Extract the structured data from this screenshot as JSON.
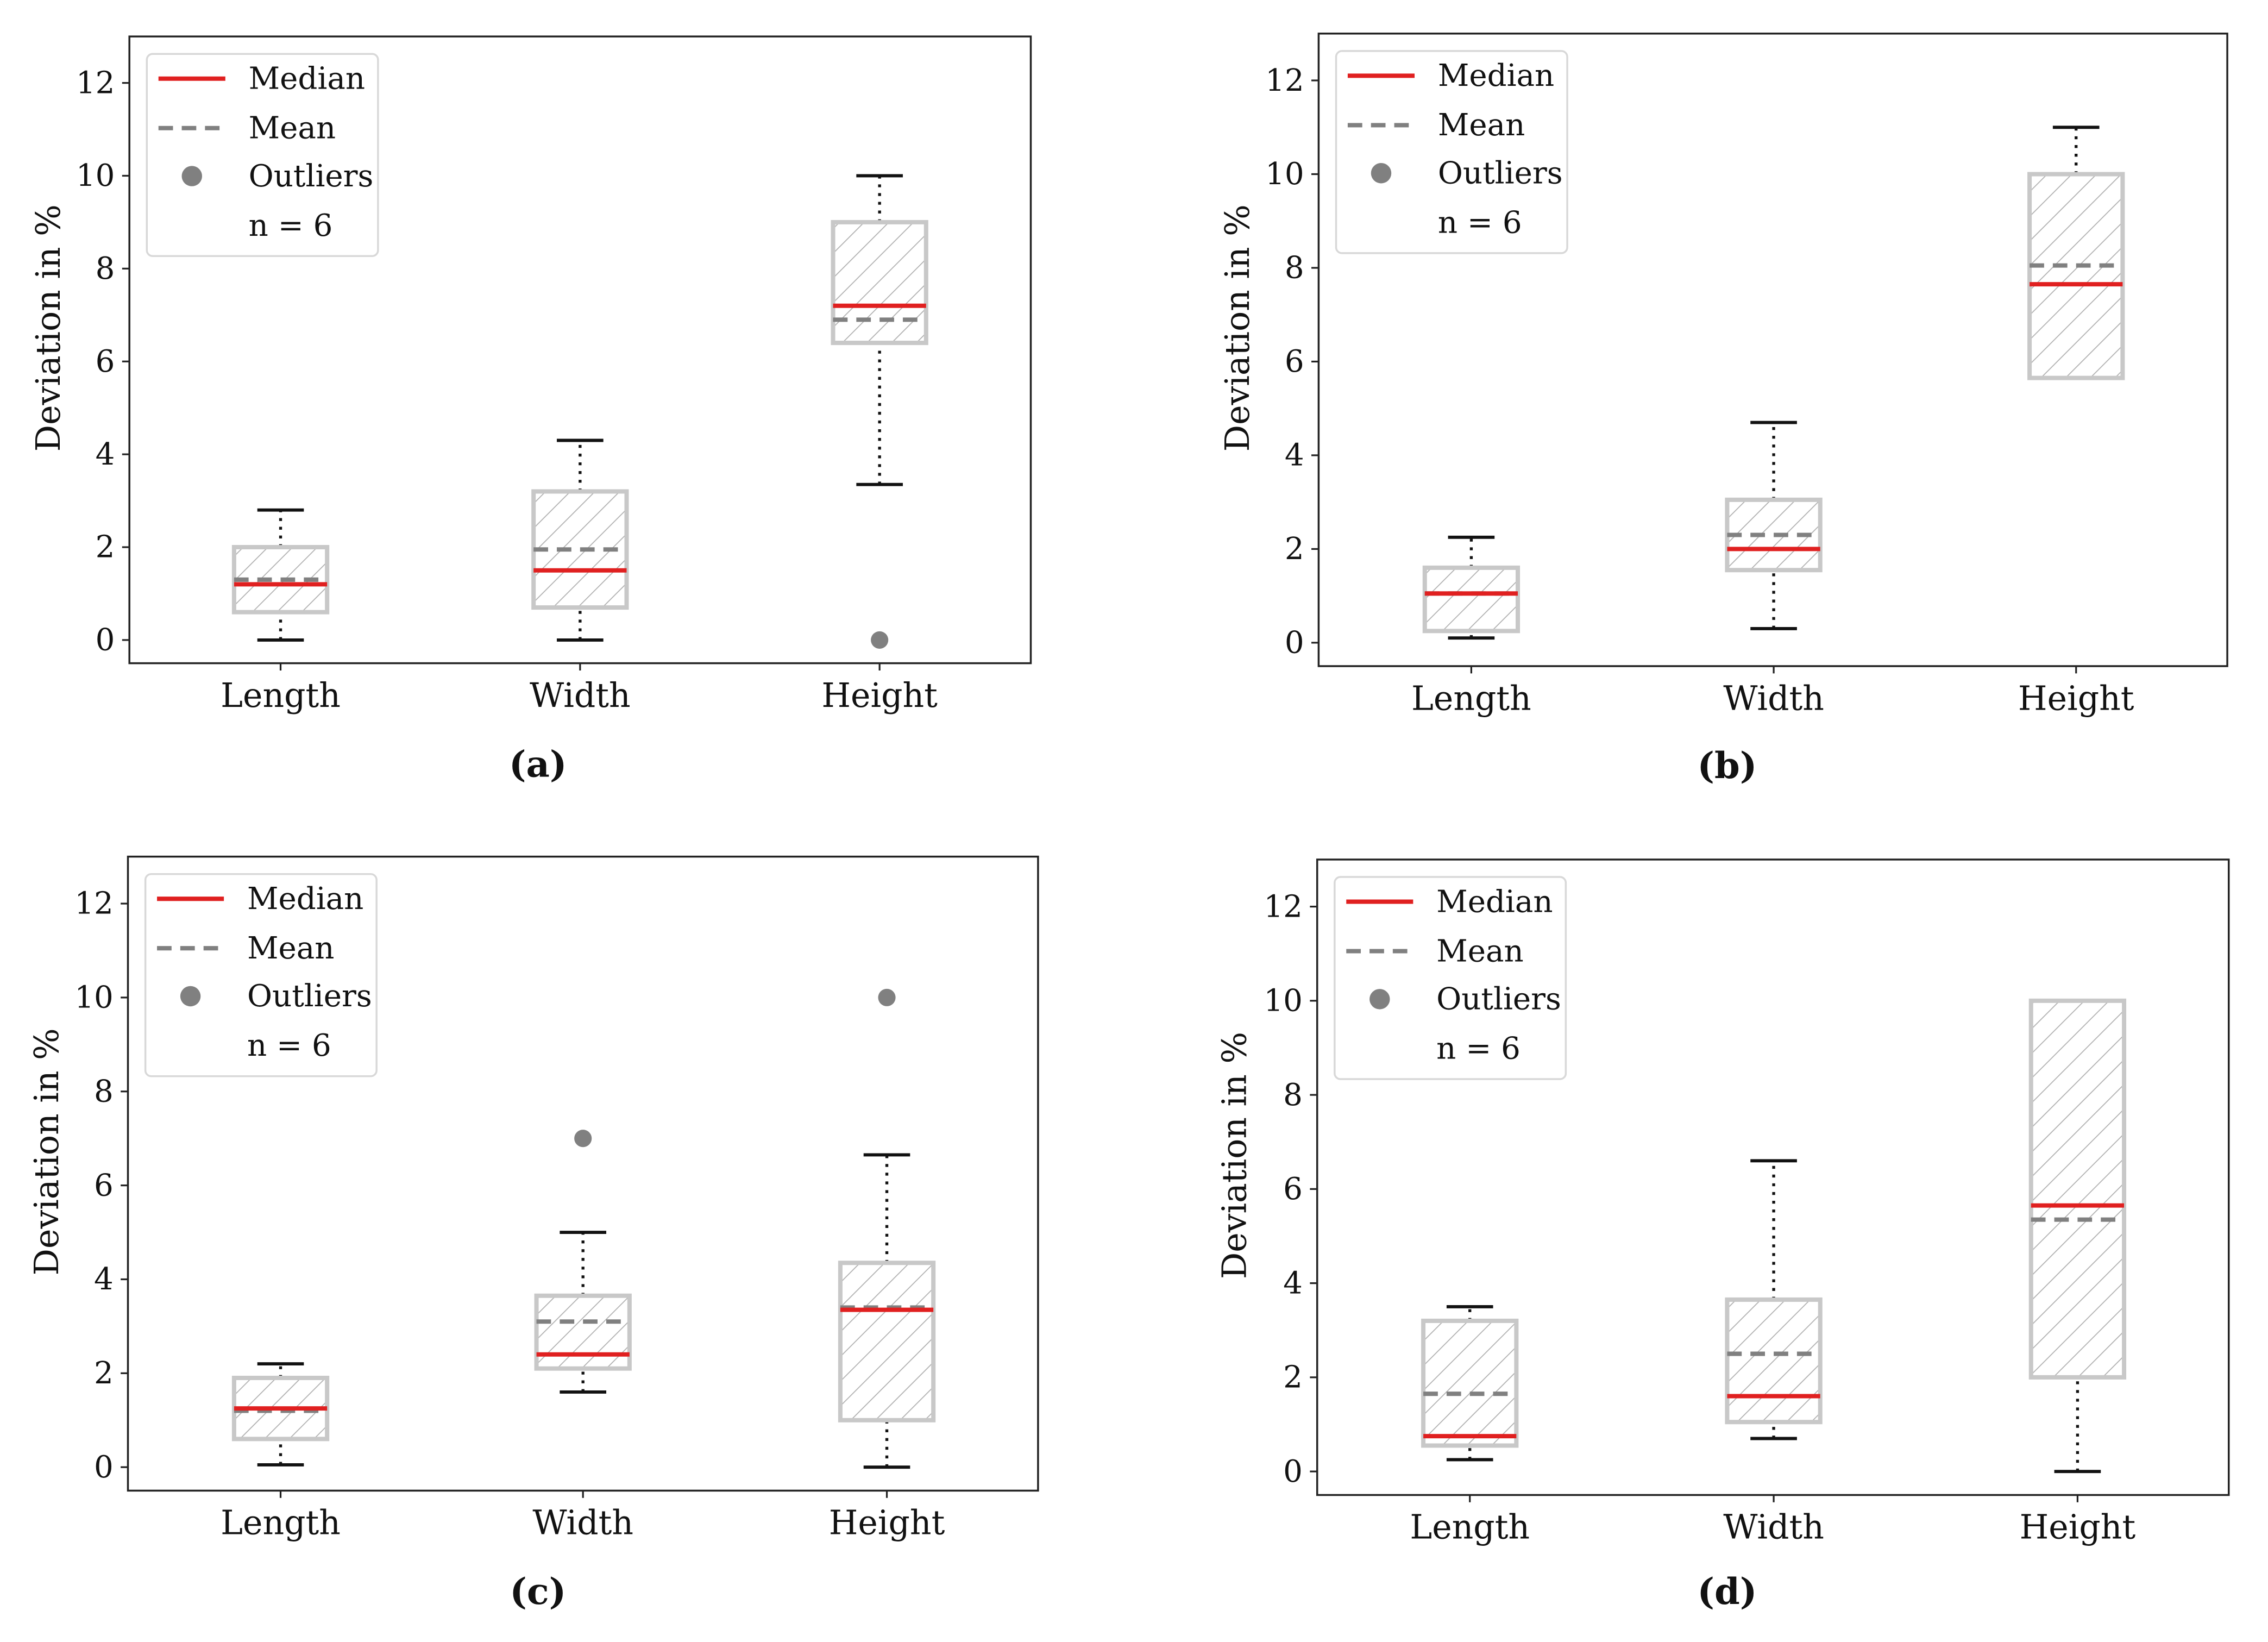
{
  "chart_data": [
    {
      "type": "box",
      "caption": "(a)",
      "ylabel": "Deviation in %",
      "ylim": [
        -0.5,
        13
      ],
      "yticks": [
        0,
        2,
        4,
        6,
        8,
        10,
        12
      ],
      "categories": [
        "Length",
        "Width",
        "Height"
      ],
      "boxes": [
        {
          "whisker_low": 0,
          "q1": 0.6,
          "median": 1.2,
          "mean": 1.3,
          "q3": 2.0,
          "whisker_high": 2.8,
          "outliers": []
        },
        {
          "whisker_low": 0,
          "q1": 0.7,
          "median": 1.5,
          "mean": 1.95,
          "q3": 3.2,
          "whisker_high": 4.3,
          "outliers": []
        },
        {
          "whisker_low": 3.35,
          "q1": 6.4,
          "median": 7.2,
          "mean": 6.9,
          "q3": 9.0,
          "whisker_high": 10,
          "outliers": [
            0
          ]
        }
      ],
      "legend": {
        "position": "top-left",
        "entries": [
          "Median",
          "Mean",
          "Outliers"
        ],
        "note": "n = 6"
      }
    },
    {
      "type": "box",
      "caption": "(b)",
      "ylabel": "Deviation in %",
      "ylim": [
        -0.5,
        13
      ],
      "yticks": [
        0,
        2,
        4,
        6,
        8,
        10,
        12
      ],
      "categories": [
        "Length",
        "Width",
        "Height"
      ],
      "boxes": [
        {
          "whisker_low": 0.1,
          "q1": 0.25,
          "median": 1.05,
          "mean": 1.05,
          "q3": 1.6,
          "whisker_high": 2.25,
          "outliers": []
        },
        {
          "whisker_low": 0.3,
          "q1": 1.55,
          "median": 2.0,
          "mean": 2.3,
          "q3": 3.05,
          "whisker_high": 4.7,
          "outliers": []
        },
        {
          "whisker_low": 5.65,
          "q1": 5.65,
          "median": 7.65,
          "mean": 8.05,
          "q3": 10.0,
          "whisker_high": 11.0,
          "outliers": []
        }
      ],
      "legend": {
        "position": "top-left",
        "entries": [
          "Median",
          "Mean",
          "Outliers"
        ],
        "note": "n = 6"
      }
    },
    {
      "type": "box",
      "caption": "(c)",
      "ylabel": "Deviation in %",
      "ylim": [
        -0.5,
        13
      ],
      "yticks": [
        0,
        2,
        4,
        6,
        8,
        10,
        12
      ],
      "categories": [
        "Length",
        "Width",
        "Height"
      ],
      "boxes": [
        {
          "whisker_low": 0.05,
          "q1": 0.6,
          "median": 1.25,
          "mean": 1.2,
          "q3": 1.9,
          "whisker_high": 2.2,
          "outliers": []
        },
        {
          "whisker_low": 1.6,
          "q1": 2.1,
          "median": 2.4,
          "mean": 3.1,
          "q3": 3.65,
          "whisker_high": 5.0,
          "outliers": [
            7.0
          ]
        },
        {
          "whisker_low": 0,
          "q1": 1.0,
          "median": 3.35,
          "mean": 3.4,
          "q3": 4.35,
          "whisker_high": 6.65,
          "outliers": [
            10.0
          ]
        }
      ],
      "legend": {
        "position": "top-left",
        "entries": [
          "Median",
          "Mean",
          "Outliers"
        ],
        "note": "n = 6"
      }
    },
    {
      "type": "box",
      "caption": "(d)",
      "ylabel": "Deviation in %",
      "ylim": [
        -0.5,
        13
      ],
      "yticks": [
        0,
        2,
        4,
        6,
        8,
        10,
        12
      ],
      "categories": [
        "Length",
        "Width",
        "Height"
      ],
      "boxes": [
        {
          "whisker_low": 0.25,
          "q1": 0.55,
          "median": 0.75,
          "mean": 1.65,
          "q3": 3.2,
          "whisker_high": 3.5,
          "outliers": []
        },
        {
          "whisker_low": 0.7,
          "q1": 1.05,
          "median": 1.6,
          "mean": 2.5,
          "q3": 3.65,
          "whisker_high": 6.6,
          "outliers": []
        },
        {
          "whisker_low": 0,
          "q1": 2.0,
          "median": 5.65,
          "mean": 5.35,
          "q3": 10.0,
          "whisker_high": 10.0,
          "outliers": []
        }
      ],
      "legend": {
        "position": "top-left",
        "entries": [
          "Median",
          "Mean",
          "Outliers"
        ],
        "note": "n = 6"
      }
    }
  ],
  "colors": {
    "median": "#e02020",
    "mean": "#808080",
    "outlier": "#808080",
    "box": "#c8c8c8",
    "hatch": "#b0b0b0",
    "axis": "#222222"
  }
}
